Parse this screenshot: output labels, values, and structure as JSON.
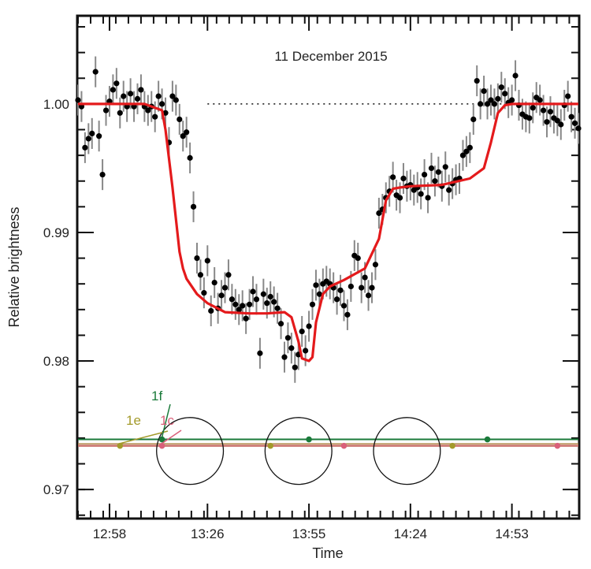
{
  "chart_data": {
    "type": "line",
    "title": "11 December 2015",
    "xlabel": "Time",
    "ylabel": "Relative brightness",
    "x_tick_labels": [
      "12:58",
      "13:26",
      "13:55",
      "14:24",
      "14:53"
    ],
    "x_tick_values_min": [
      0,
      28,
      57,
      86,
      115
    ],
    "xlim_min": [
      -9,
      134
    ],
    "y_tick_labels": [
      "0.97",
      "0.98",
      "0.99",
      "1.00"
    ],
    "y_tick_values": [
      0.97,
      0.98,
      0.99,
      1.0
    ],
    "ylim": [
      0.9678,
      1.0068
    ],
    "reference_line": {
      "y": 1.0,
      "style": "dotted"
    },
    "model": {
      "name": "",
      "color": "#e41a1c",
      "x": [
        -9,
        4,
        10,
        15,
        16,
        18,
        20,
        21,
        22,
        25,
        28,
        33,
        40,
        45,
        50,
        52,
        54,
        55,
        57,
        58,
        59,
        61,
        63,
        67,
        73,
        77,
        79,
        81,
        83,
        86,
        95,
        103,
        107,
        109,
        111,
        113,
        115,
        125,
        134
      ],
      "y": [
        1.0,
        1.0,
        1.0,
        0.9995,
        0.998,
        0.9935,
        0.9885,
        0.9872,
        0.9864,
        0.9852,
        0.9845,
        0.9838,
        0.9837,
        0.9837,
        0.9838,
        0.9834,
        0.9815,
        0.9802,
        0.98,
        0.9803,
        0.983,
        0.9852,
        0.9858,
        0.9863,
        0.9872,
        0.9895,
        0.9925,
        0.9934,
        0.9935,
        0.9936,
        0.9937,
        0.9942,
        0.995,
        0.997,
        0.9993,
        0.9999,
        1.0,
        1.0,
        1.0
      ]
    },
    "observations": {
      "color": "#000000",
      "error_color": "#888888",
      "x": [
        -9,
        -8,
        -7,
        -6,
        -5,
        -4,
        -3,
        -2,
        -1,
        0,
        1,
        2,
        3,
        4,
        5,
        6,
        7,
        8,
        9,
        10,
        11,
        12,
        13,
        14,
        15,
        16,
        17,
        18,
        19,
        20,
        21,
        22,
        23,
        24,
        25,
        26,
        27,
        28,
        29,
        30,
        31,
        32,
        33,
        34,
        35,
        36,
        37,
        38,
        39,
        40,
        41,
        42,
        43,
        44,
        45,
        46,
        47,
        48,
        49,
        50,
        51,
        52,
        53,
        54,
        55,
        56,
        57,
        58,
        59,
        60,
        61,
        62,
        63,
        64,
        65,
        66,
        67,
        68,
        69,
        70,
        71,
        72,
        73,
        74,
        75,
        76,
        77,
        78,
        79,
        80,
        81,
        82,
        83,
        84,
        85,
        86,
        87,
        88,
        89,
        90,
        91,
        92,
        93,
        94,
        95,
        96,
        97,
        98,
        99,
        100,
        101,
        102,
        103,
        104,
        105,
        106,
        107,
        108,
        109,
        110,
        111,
        112,
        113,
        114,
        115,
        116,
        117,
        118,
        119,
        120,
        121,
        122,
        123,
        124,
        125,
        126,
        127,
        128,
        129,
        130,
        131,
        132,
        133,
        134
      ],
      "y": [
        1.0003,
        0.9998,
        0.9966,
        0.9973,
        0.9977,
        1.0025,
        0.9975,
        0.9945,
        0.9995,
        1.0002,
        1.0011,
        1.0016,
        0.9993,
        1.0006,
        0.9998,
        1.0008,
        0.9998,
        1.0004,
        1.0011,
        0.9998,
        0.9995,
        0.9998,
        0.999,
        1.0006,
        1.0,
        0.9993,
        0.997,
        1.0006,
        1.0003,
        0.9988,
        0.9975,
        0.9978,
        0.9958,
        0.992,
        0.988,
        0.9867,
        0.9853,
        0.9878,
        0.9839,
        0.9861,
        0.9841,
        0.9851,
        0.9857,
        0.9867,
        0.9848,
        0.9844,
        0.984,
        0.9843,
        0.9833,
        0.9844,
        0.9854,
        0.9848,
        0.9806,
        0.9852,
        0.9845,
        0.985,
        0.9846,
        0.9841,
        0.9829,
        0.9803,
        0.9818,
        0.981,
        0.9795,
        0.9805,
        0.9823,
        0.9808,
        0.9827,
        0.9844,
        0.9859,
        0.9852,
        0.986,
        0.9862,
        0.986,
        0.9857,
        0.9848,
        0.9855,
        0.9843,
        0.9836,
        0.9858,
        0.9882,
        0.988,
        0.9857,
        0.9865,
        0.9851,
        0.9857,
        0.9875,
        0.9915,
        0.9918,
        0.9927,
        0.9932,
        0.9943,
        0.9929,
        0.9927,
        0.9942,
        0.9936,
        0.9937,
        0.9933,
        0.9935,
        0.993,
        0.9945,
        0.9927,
        0.995,
        0.994,
        0.9947,
        0.9936,
        0.9951,
        0.9933,
        0.9938,
        0.9941,
        0.9942,
        0.996,
        0.9963,
        0.9966,
        0.9988,
        1.0018,
        1.0,
        1.001,
        1.0,
        1.0003,
        1.0,
        1.0004,
        1.0013,
        1.0008,
        1.0001,
        1.0003,
        1.0022,
        0.9999,
        0.9992,
        0.999,
        0.9989,
        0.9997,
        1.0005,
        1.0003,
        0.9995,
        0.9986,
        0.9994,
        0.9989,
        0.9987,
        0.9984,
        0.9999,
        1.0006,
        0.999,
        0.9985,
        0.9981
      ],
      "error": [
        0.0012,
        0.0012,
        0.0012,
        0.0012,
        0.0012,
        0.0012,
        0.0012,
        0.0012,
        0.0012,
        0.0012,
        0.0012,
        0.0012,
        0.0012,
        0.0012,
        0.0012,
        0.0012,
        0.0012,
        0.0012,
        0.0012,
        0.0012,
        0.0012,
        0.0012,
        0.0012,
        0.0012,
        0.0012,
        0.0012,
        0.0012,
        0.0012,
        0.0012,
        0.0012,
        0.0012,
        0.0012,
        0.0012,
        0.0012,
        0.0012,
        0.0012,
        0.0012,
        0.0012,
        0.0012,
        0.0012,
        0.0012,
        0.0012,
        0.0012,
        0.0012,
        0.0012,
        0.0012,
        0.0012,
        0.0012,
        0.0012,
        0.0012,
        0.0012,
        0.0012,
        0.0012,
        0.0012,
        0.0012,
        0.0012,
        0.0012,
        0.0012,
        0.0012,
        0.0012,
        0.0012,
        0.0012,
        0.0012,
        0.0012,
        0.0012,
        0.0012,
        0.0012,
        0.0012,
        0.0012,
        0.0012,
        0.0012,
        0.0012,
        0.0012,
        0.0012,
        0.0012,
        0.0012,
        0.0012,
        0.0012,
        0.0012,
        0.0012,
        0.0012,
        0.0012,
        0.0012,
        0.0012,
        0.0012,
        0.0012,
        0.0012,
        0.0012,
        0.0012,
        0.0012,
        0.0012,
        0.0012,
        0.0012,
        0.0012,
        0.0012,
        0.0012,
        0.0012,
        0.0012,
        0.0012,
        0.0012,
        0.0012,
        0.0012,
        0.0012,
        0.0012,
        0.0012,
        0.0012,
        0.0012,
        0.0012,
        0.0012,
        0.0012,
        0.0012,
        0.0012,
        0.0012,
        0.0012,
        0.0012,
        0.0012,
        0.0012,
        0.0012,
        0.0012,
        0.0012,
        0.0012,
        0.0012,
        0.0012,
        0.0012,
        0.0012,
        0.0012,
        0.0012,
        0.0012,
        0.0012,
        0.0012,
        0.0012,
        0.0012,
        0.0012,
        0.0012,
        0.0012,
        0.0012,
        0.0012,
        0.0012,
        0.0012,
        0.0012,
        0.0012,
        0.0012,
        0.0012,
        0.0012
      ]
    },
    "planet_tracks": [
      {
        "name": "1f",
        "color": "#1a7a3a",
        "y": 0.9739,
        "x": [
          15,
          57,
          108
        ]
      },
      {
        "name": "1c",
        "color": "#d9607a",
        "y": 0.9734,
        "x": [
          15,
          67,
          128
        ]
      },
      {
        "name": "1e",
        "color": "#a39a2a",
        "y": 0.9734,
        "x": 3,
        "x_all": [
          3,
          46,
          98
        ]
      }
    ],
    "star_circles": {
      "x": [
        23,
        54,
        85
      ],
      "y": 0.973,
      "radius_y": 0.0026
    }
  }
}
